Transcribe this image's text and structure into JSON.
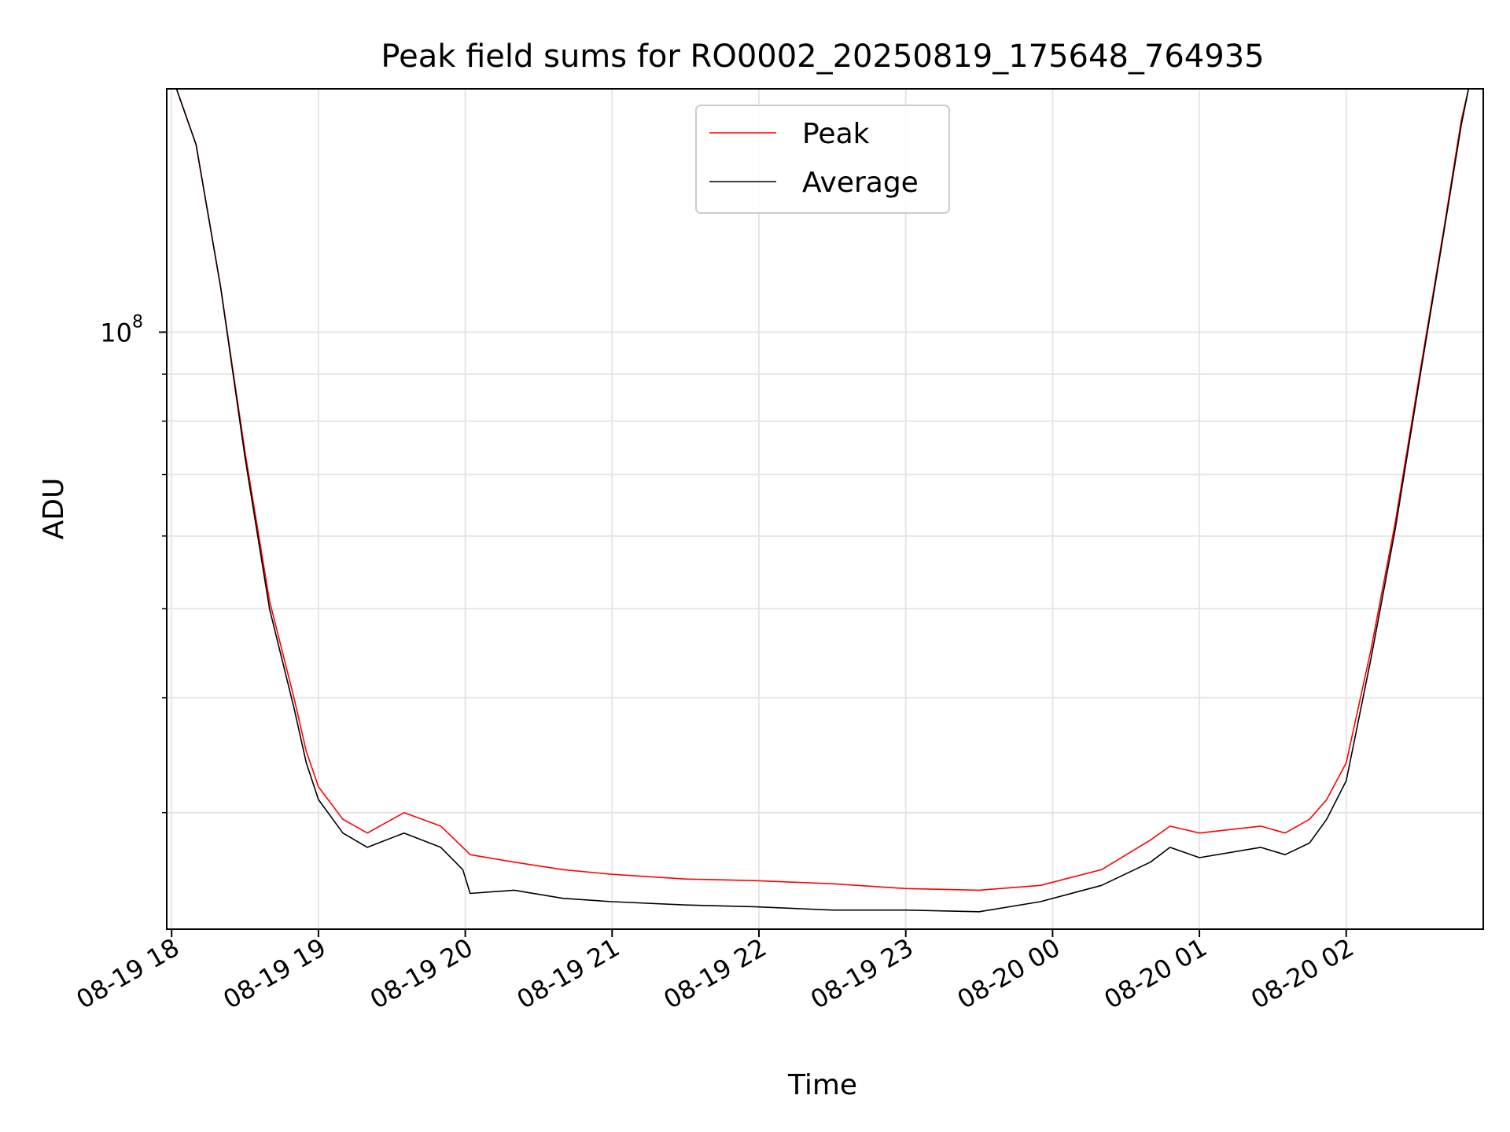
{
  "chart_data": {
    "type": "line",
    "title": "Peak field sums for RO0002_20250819_175648_764935",
    "xlabel": "Time",
    "ylabel": "ADU",
    "yscale": "log",
    "grid": true,
    "legend_position": "top-center",
    "x_range": [
      "2025-08-19 17:58",
      "2025-08-20 02:56"
    ],
    "ylim": [
      22400000,
      184000000
    ],
    "x_ticks": [
      "08-19 18",
      "08-19 19",
      "08-19 20",
      "08-19 21",
      "08-19 22",
      "08-19 23",
      "08-20 00",
      "08-20 01",
      "08-20 02"
    ],
    "y_ticks": [
      {
        "value": 100000000,
        "base": "10",
        "exp": "8"
      }
    ],
    "series": [
      {
        "name": "Peak",
        "color": "#ff0000",
        "x": [
          "2025-08-19 17:58",
          "2025-08-19 18:02",
          "2025-08-19 18:10",
          "2025-08-19 18:20",
          "2025-08-19 18:30",
          "2025-08-19 18:40",
          "2025-08-19 18:50",
          "2025-08-19 18:55",
          "2025-08-19 19:00",
          "2025-08-19 19:10",
          "2025-08-19 19:20",
          "2025-08-19 19:35",
          "2025-08-19 19:50",
          "2025-08-19 19:59",
          "2025-08-19 20:02",
          "2025-08-19 20:20",
          "2025-08-19 20:40",
          "2025-08-19 21:00",
          "2025-08-19 21:30",
          "2025-08-19 21:58",
          "2025-08-19 22:30",
          "2025-08-19 23:00",
          "2025-08-19 23:30",
          "2025-08-19 23:55",
          "2025-08-20 00:20",
          "2025-08-20 00:40",
          "2025-08-20 00:48",
          "2025-08-20 01:00",
          "2025-08-20 01:25",
          "2025-08-20 01:35",
          "2025-08-20 01:45",
          "2025-08-20 01:52",
          "2025-08-20 02:00",
          "2025-08-20 02:10",
          "2025-08-20 02:20",
          "2025-08-20 02:30",
          "2025-08-20 02:40",
          "2025-08-20 02:47",
          "2025-08-20 02:50",
          "2025-08-20 02:56"
        ],
        "y": [
          184000000,
          184000000,
          160000000,
          112000000,
          74000000,
          51000000,
          40000000,
          35000000,
          32000000,
          29500000,
          28500000,
          30000000,
          29000000,
          27500000,
          27000000,
          26500000,
          26000000,
          25700000,
          25400000,
          25300000,
          25100000,
          24800000,
          24700000,
          25000000,
          26000000,
          28000000,
          29000000,
          28500000,
          29000000,
          28500000,
          29500000,
          31000000,
          34000000,
          45000000,
          62000000,
          90000000,
          130000000,
          170000000,
          184000000,
          184000000
        ]
      },
      {
        "name": "Average",
        "color": "#000000",
        "x": [
          "2025-08-19 17:58",
          "2025-08-19 18:02",
          "2025-08-19 18:10",
          "2025-08-19 18:20",
          "2025-08-19 18:30",
          "2025-08-19 18:40",
          "2025-08-19 18:50",
          "2025-08-19 18:55",
          "2025-08-19 19:00",
          "2025-08-19 19:10",
          "2025-08-19 19:20",
          "2025-08-19 19:35",
          "2025-08-19 19:50",
          "2025-08-19 19:59",
          "2025-08-19 20:02",
          "2025-08-19 20:20",
          "2025-08-19 20:40",
          "2025-08-19 21:00",
          "2025-08-19 21:30",
          "2025-08-19 21:58",
          "2025-08-19 22:30",
          "2025-08-19 23:00",
          "2025-08-19 23:30",
          "2025-08-19 23:55",
          "2025-08-20 00:20",
          "2025-08-20 00:40",
          "2025-08-20 00:48",
          "2025-08-20 01:00",
          "2025-08-20 01:25",
          "2025-08-20 01:35",
          "2025-08-20 01:45",
          "2025-08-20 01:52",
          "2025-08-20 02:00",
          "2025-08-20 02:10",
          "2025-08-20 02:20",
          "2025-08-20 02:30",
          "2025-08-20 02:40",
          "2025-08-20 02:47",
          "2025-08-20 02:50",
          "2025-08-20 02:56"
        ],
        "y": [
          184000000,
          184000000,
          160000000,
          112000000,
          73000000,
          50000000,
          39000000,
          34000000,
          31000000,
          28500000,
          27500000,
          28500000,
          27500000,
          26000000,
          24500000,
          24700000,
          24200000,
          24000000,
          23800000,
          23700000,
          23500000,
          23500000,
          23400000,
          24000000,
          25000000,
          26500000,
          27500000,
          26800000,
          27500000,
          27000000,
          27800000,
          29500000,
          32500000,
          44000000,
          61000000,
          89000000,
          129000000,
          168000000,
          184000000,
          184000000
        ]
      }
    ]
  }
}
